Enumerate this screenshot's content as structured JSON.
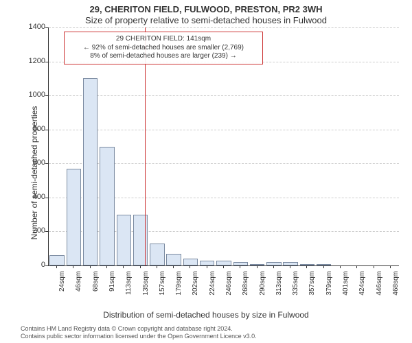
{
  "title_line1": "29, CHERITON FIELD, FULWOOD, PRESTON, PR2 3WH",
  "title_line2": "Size of property relative to semi-detached houses in Fulwood",
  "ylabel": "Number of semi-detached properties",
  "xlabel": "Distribution of semi-detached houses by size in Fulwood",
  "footer_line1": "Contains HM Land Registry data © Crown copyright and database right 2024.",
  "footer_line2": "Contains public sector information licensed under the Open Government Licence v3.0.",
  "chart": {
    "type": "bar",
    "ylim": [
      0,
      1400
    ],
    "ytick_step": 200,
    "background_color": "#ffffff",
    "grid_color": "#cccccc",
    "bar_fill": "#dbe6f4",
    "bar_stroke": "#7a8aa0",
    "axis_color": "#333333",
    "label_fontsize": 12,
    "title_fontsize": 13,
    "tick_fontsize": 11,
    "x_labels": [
      "24sqm",
      "46sqm",
      "68sqm",
      "91sqm",
      "113sqm",
      "135sqm",
      "157sqm",
      "179sqm",
      "202sqm",
      "224sqm",
      "246sqm",
      "268sqm",
      "290sqm",
      "313sqm",
      "335sqm",
      "357sqm",
      "379sqm",
      "401sqm",
      "424sqm",
      "446sqm",
      "468sqm"
    ],
    "values": [
      60,
      570,
      1100,
      700,
      300,
      300,
      130,
      70,
      40,
      30,
      30,
      20,
      5,
      20,
      20,
      5,
      5,
      0,
      0,
      0,
      0
    ],
    "marker": {
      "color": "#cc3333",
      "x_value_sqm": 141,
      "box_line1": "29 CHERITON FIELD: 141sqm",
      "box_line2": "← 92% of semi-detached houses are smaller (2,769)",
      "box_line3": "8% of semi-detached houses are larger (239) →"
    }
  }
}
